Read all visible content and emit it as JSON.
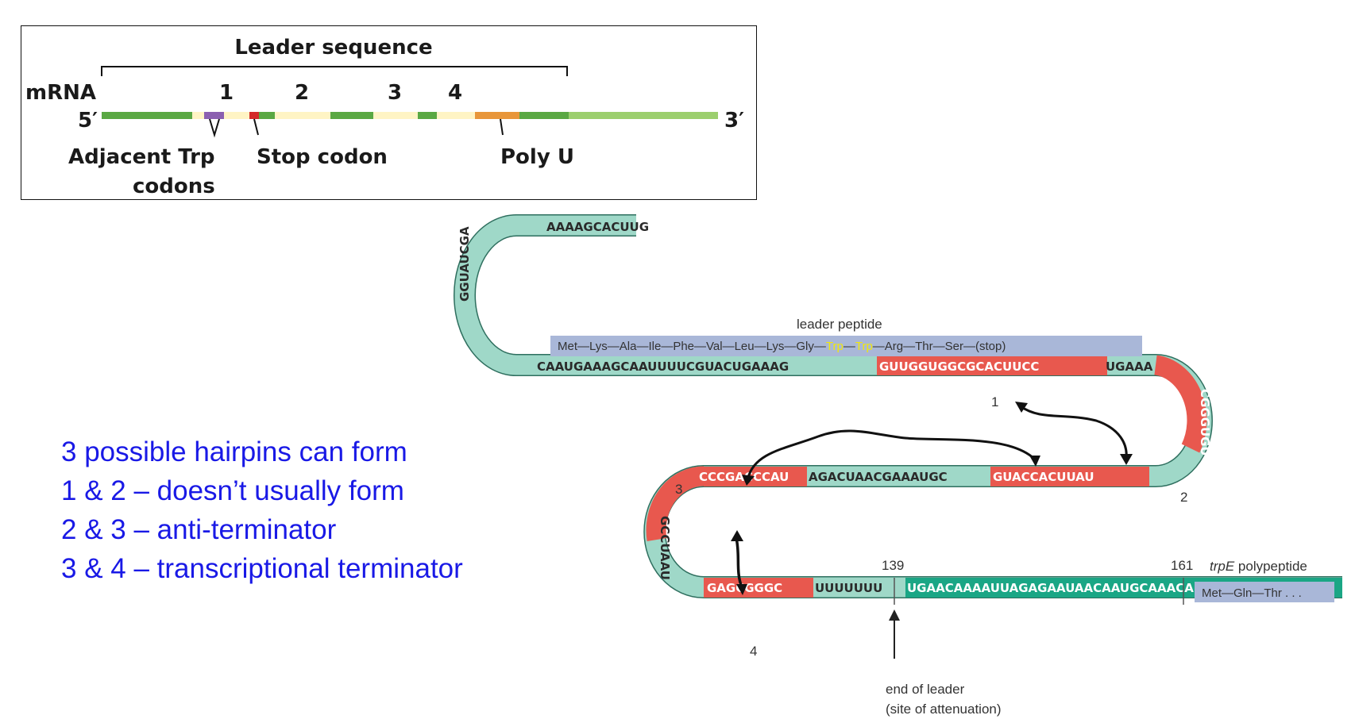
{
  "leader_box": {
    "title": "Leader sequence",
    "mrna_label": "mRNA",
    "five_prime": "5′",
    "three_prime": "3′",
    "region_numbers": [
      "1",
      "2",
      "3",
      "4"
    ],
    "label_trp_line1": "Adjacent Trp",
    "label_trp_line2": "codons",
    "label_stop": "Stop codon",
    "label_polyu": "Poly U"
  },
  "hairpin": {
    "seq_top": "AAAAGCACUUG",
    "seq_curve": "GGUAUCGA",
    "seq_row1_a": "CAAUGAAAGCAAUUUUCGUACUGAAAG",
    "seq_row1_b": "GUUGGUGGCGCACUUCC",
    "seq_row1_c": "UGAAA",
    "seq_right": "CGGGUGU",
    "seq_row2_a": "GUACCACUUAU",
    "seq_row2_b": "AGACUAACGAAAUGC",
    "seq_row2_c": "CCCGACCCAU",
    "seq_left": "GCCUAAU",
    "seq_row3_a": "GAGCGGGC",
    "seq_row3_b": "UUUUUUU",
    "seq_row3_c": "UGAACAAAAUUAGAGAAUAACAAUGCAAACA...",
    "region_1": "1",
    "region_2": "2",
    "region_3": "3",
    "region_4": "4",
    "peptide_title": "leader peptide",
    "peptide_a": "Met—Lys—Ala—Ile—Phe—Val—Leu—Lys—Gly—",
    "peptide_trp1": "Trp",
    "peptide_dash": "—",
    "peptide_trp2": "Trp",
    "peptide_b": "—Arg—Thr—Ser—(stop)",
    "pos_139": "139",
    "pos_161": "161",
    "trpe_italic": "trpE",
    "trpe_rest": " polypeptide",
    "trpe_peptide": "Met—Gln—Thr  . . .",
    "end_leader_line1": "end of leader",
    "end_leader_line2": "(site of attenuation)"
  },
  "notes": [
    "3 possible hairpins can form",
    "1 & 2 – doesn’t usually form",
    "2 & 3 – anti-terminator",
    "3 & 4 – transcriptional terminator"
  ],
  "colors": {
    "mint": "#9fd8c8",
    "red": "#e8584e",
    "teal": "#1aa685",
    "peptide_bg": "#a9b7d8",
    "note_blue": "#1919e6",
    "bar_green": "#5aa843",
    "bar_light": "#fff4c4",
    "bar_orange": "#e8963a"
  }
}
